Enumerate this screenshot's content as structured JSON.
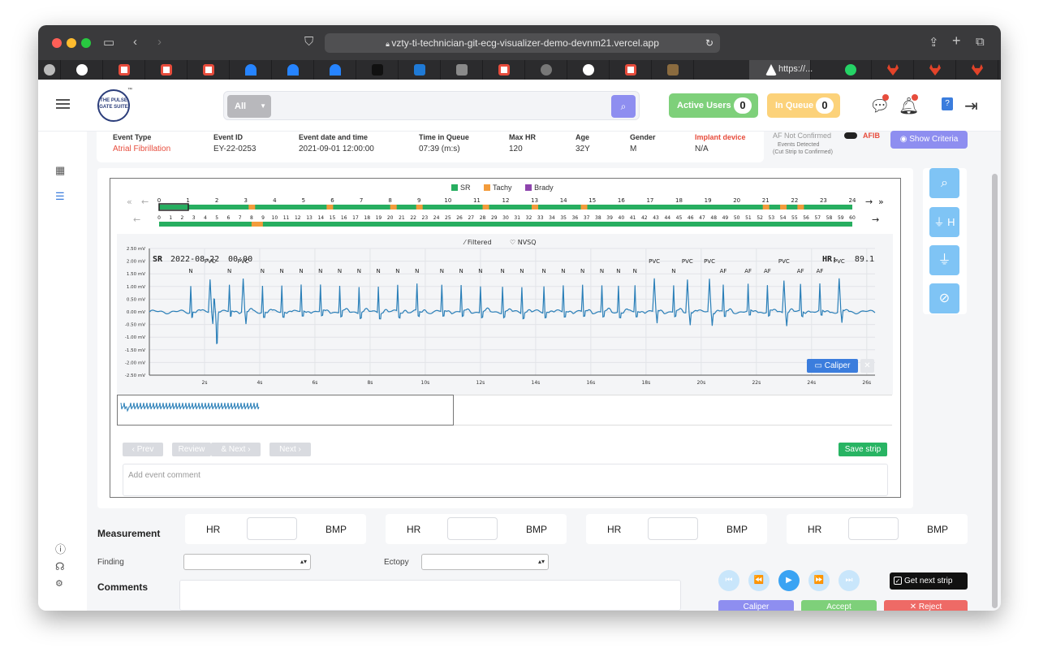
{
  "browser": {
    "url": "vzty-ti-technician-git-ecg-visualizer-demo-devnm21.vercel.app",
    "active_tab_label": "https://..."
  },
  "header": {
    "logo_text": "THE PULSE GATE SUITE",
    "search": {
      "filter_value": "All",
      "placeholder": ""
    },
    "active_users": {
      "label": "Active Users",
      "count": "0"
    },
    "in_queue": {
      "label": "In Queue",
      "count": "0"
    },
    "message_badge": "10",
    "notification_badge": "10"
  },
  "event": {
    "fields": [
      {
        "label": "Event Type",
        "value": "Atrial Fibrillation",
        "accent": "#e74c3c"
      },
      {
        "label": "Event ID",
        "value": "EY-22-0253"
      },
      {
        "label": "Event date and time",
        "value": "2021-09-01 12:00:00"
      },
      {
        "label": "Time in Queue",
        "value": "07:39 (m:s)"
      },
      {
        "label": "Max HR",
        "value": "120"
      },
      {
        "label": "Age",
        "value": "32Y"
      },
      {
        "label": "Gender",
        "value": "M"
      },
      {
        "label": "Implant device",
        "value": "N/A",
        "label_accent": "#e74c3c"
      }
    ],
    "af_not_confirmed": "AF Not Confirmed",
    "afib": "AFIB",
    "events_detected": "Events Detected",
    "cut_strip_note": "(Cut Strip to Confirmed)",
    "show_criteria": "Show Criteria"
  },
  "rhythm_legend": [
    {
      "label": "SR",
      "color": "#27ae60"
    },
    {
      "label": "Tachy",
      "color": "#f39c3c"
    },
    {
      "label": "Brady",
      "color": "#8e44ad"
    }
  ],
  "hour_ticks": [
    "0",
    "1",
    "2",
    "3",
    "4",
    "5",
    "6",
    "7",
    "8",
    "9",
    "10",
    "11",
    "12",
    "13",
    "14",
    "15",
    "16",
    "17",
    "18",
    "19",
    "20",
    "21",
    "22",
    "23",
    "24"
  ],
  "minute_ticks": [
    "0",
    "1",
    "2",
    "3",
    "4",
    "5",
    "6",
    "7",
    "8",
    "9",
    "10",
    "11",
    "12",
    "13",
    "14",
    "15",
    "16",
    "17",
    "18",
    "19",
    "20",
    "21",
    "22",
    "23",
    "24",
    "25",
    "26",
    "27",
    "28",
    "29",
    "30",
    "31",
    "32",
    "33",
    "34",
    "35",
    "36",
    "37",
    "38",
    "39",
    "40",
    "41",
    "42",
    "43",
    "44",
    "45",
    "46",
    "47",
    "48",
    "49",
    "50",
    "51",
    "52",
    "53",
    "54",
    "55",
    "56",
    "57",
    "58",
    "59",
    "60"
  ],
  "ecg": {
    "legend": {
      "filtered": "Filtered",
      "nvsq": "NVSQ"
    },
    "rhythm": "SR",
    "date": "2022-08-22",
    "time": "00:00",
    "hr_label": "HR:",
    "hr_value": "89.1",
    "y_ticks": [
      "2.50 mV",
      "2.00 mV",
      "1.50 mV",
      "1.00 mV",
      "0.50 mV",
      "0.00 mV",
      "-0.50 mV",
      "-1.00 mV",
      "-1.50 mV",
      "-2.00 mV",
      "-2.50 mV"
    ],
    "x_ticks": [
      "2s",
      "4s",
      "6s",
      "8s",
      "10s",
      "12s",
      "14s",
      "16s",
      "18s",
      "20s",
      "22s",
      "24s",
      "26s"
    ],
    "beats": [
      {
        "label": "N",
        "t": 1.5
      },
      {
        "label": "PVC",
        "t": 2.2
      },
      {
        "label": "N",
        "t": 2.9
      },
      {
        "label": "PVC",
        "t": 3.4
      },
      {
        "label": "N",
        "t": 4.1
      },
      {
        "label": "N",
        "t": 4.8
      },
      {
        "label": "N",
        "t": 5.5
      },
      {
        "label": "N",
        "t": 6.2
      },
      {
        "label": "N",
        "t": 6.9
      },
      {
        "label": "N",
        "t": 7.6
      },
      {
        "label": "N",
        "t": 8.3
      },
      {
        "label": "N",
        "t": 9.0
      },
      {
        "label": "N",
        "t": 9.7
      },
      {
        "label": "N",
        "t": 10.6
      },
      {
        "label": "N",
        "t": 11.3
      },
      {
        "label": "N",
        "t": 12.0
      },
      {
        "label": "N",
        "t": 12.8
      },
      {
        "label": "N",
        "t": 13.5
      },
      {
        "label": "N",
        "t": 14.3
      },
      {
        "label": "N",
        "t": 15.0
      },
      {
        "label": "N",
        "t": 15.7
      },
      {
        "label": "N",
        "t": 16.4
      },
      {
        "label": "N",
        "t": 17.0
      },
      {
        "label": "N",
        "t": 17.6
      },
      {
        "label": "PVC",
        "t": 18.3
      },
      {
        "label": "N",
        "t": 19.0
      },
      {
        "label": "PVC",
        "t": 19.5
      },
      {
        "label": "PVC",
        "t": 20.3
      },
      {
        "label": "AF",
        "t": 20.8
      },
      {
        "label": "AF",
        "t": 21.7
      },
      {
        "label": "AF",
        "t": 22.4
      },
      {
        "label": "PVC",
        "t": 23.0
      },
      {
        "label": "AF",
        "t": 23.6
      },
      {
        "label": "AF",
        "t": 24.3
      },
      {
        "label": "PVC",
        "t": 25.0
      }
    ],
    "caliper_label": "Caliper"
  },
  "nav": {
    "prev": "Prev",
    "review": "Review",
    "and_next": "& Next",
    "next": "Next",
    "save_strip": "Save strip"
  },
  "comment_placeholder": "Add event comment",
  "measurement": {
    "title": "Measurement",
    "cards": [
      {
        "label": "HR",
        "value": "",
        "unit": "BMP"
      },
      {
        "label": "HR",
        "value": "",
        "unit": "BMP"
      },
      {
        "label": "HR",
        "value": "",
        "unit": "BMP"
      },
      {
        "label": "HR",
        "value": "",
        "unit": "BMP"
      }
    ],
    "finding_label": "Finding",
    "ectopy_label": "Ectopy",
    "comments_title": "Comments"
  },
  "actions": {
    "get_next_strip": "Get next strip",
    "caliper": "Caliper",
    "accept": "Accept",
    "reject": "Reject"
  }
}
